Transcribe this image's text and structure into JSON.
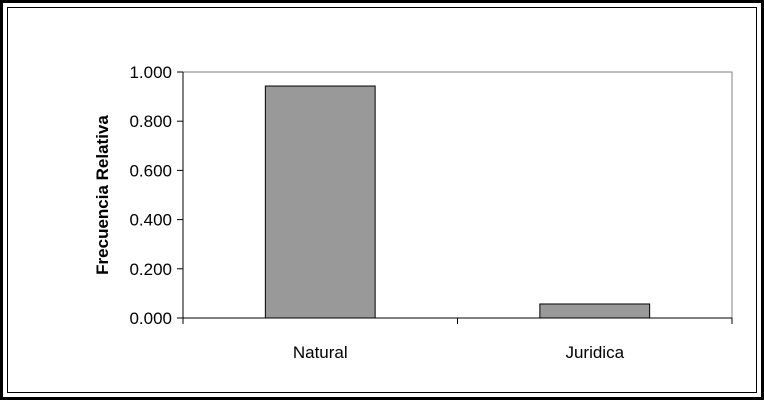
{
  "chart_data": {
    "type": "bar",
    "categories": [
      "Natural",
      "Juridica"
    ],
    "values": [
      0.943,
      0.057
    ],
    "title": "",
    "xlabel": "",
    "ylabel": "Frecuencia Relativa",
    "ylim": [
      0,
      1
    ],
    "yticks": [
      0,
      0.2,
      0.4,
      0.6,
      0.8,
      1.0
    ],
    "ytick_labels": [
      "0.000",
      "0.200",
      "0.400",
      "0.600",
      "0.800",
      "1.000"
    ],
    "grid": false,
    "legend": "none",
    "colors": {
      "bar_fill": "#999999",
      "bar_stroke": "#000000",
      "plot_border": "#808080",
      "axis": "#000000",
      "frame": "#000000"
    }
  }
}
